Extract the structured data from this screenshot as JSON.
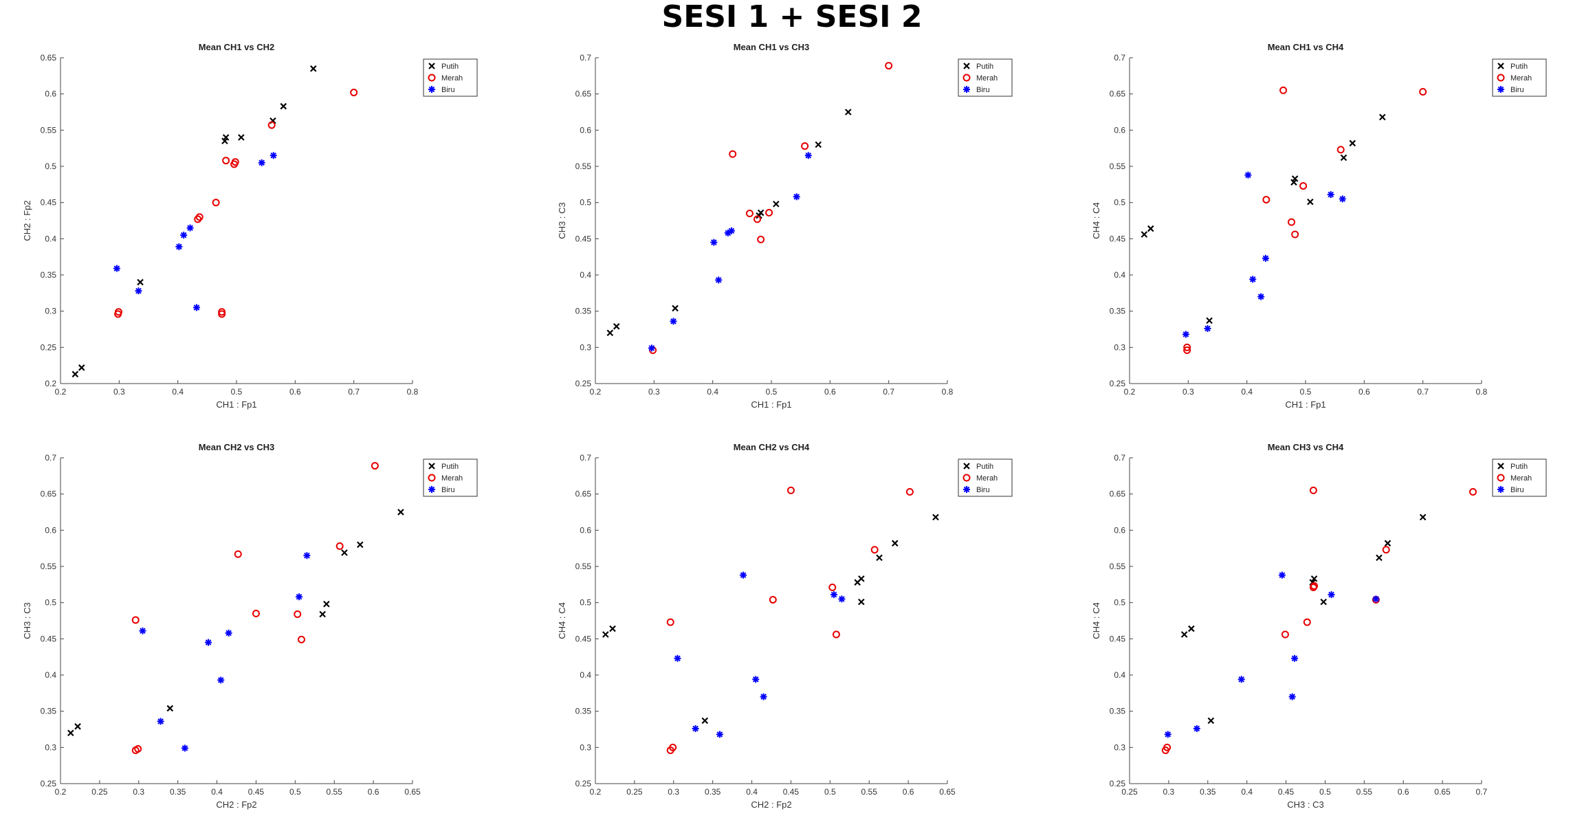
{
  "figure": {
    "title": "SESI 1 + SESI 2"
  },
  "legend_labels": [
    "Putih",
    "Merah",
    "Biru"
  ],
  "colors": {
    "Putih": "#000000",
    "Merah": "#e60000",
    "Biru": "#0000ff"
  },
  "chart_data": [
    {
      "type": "scatter",
      "title": "Mean CH1 vs CH2",
      "xlabel": "CH1 : Fp1",
      "ylabel": "CH2 : Fp2",
      "xlim": [
        0.2,
        0.8
      ],
      "ylim": [
        0.2,
        0.65
      ],
      "xticks": [
        "0.2",
        "0.3",
        "0.4",
        "0.5",
        "0.6",
        "0.7",
        "0.8"
      ],
      "yticks": [
        "0.2",
        "0.25",
        "0.3",
        "0.35",
        "0.4",
        "0.45",
        "0.5",
        "0.55",
        "0.6",
        "0.65"
      ],
      "legend_position": "top-right",
      "series": [
        {
          "name": "Putih",
          "marker": "x",
          "points": [
            [
              0.225,
              0.213
            ],
            [
              0.236,
              0.222
            ],
            [
              0.336,
              0.34
            ],
            [
              0.48,
              0.535
            ],
            [
              0.482,
              0.54
            ],
            [
              0.508,
              0.54
            ],
            [
              0.562,
              0.563
            ],
            [
              0.58,
              0.583
            ],
            [
              0.631,
              0.635
            ]
          ]
        },
        {
          "name": "Merah",
          "marker": "o",
          "points": [
            [
              0.298,
              0.296
            ],
            [
              0.299,
              0.299
            ],
            [
              0.434,
              0.427
            ],
            [
              0.437,
              0.43
            ],
            [
              0.465,
              0.45
            ],
            [
              0.475,
              0.296
            ],
            [
              0.475,
              0.299
            ],
            [
              0.482,
              0.508
            ],
            [
              0.496,
              0.503
            ],
            [
              0.498,
              0.506
            ],
            [
              0.56,
              0.557
            ],
            [
              0.7,
              0.602
            ]
          ]
        },
        {
          "name": "Biru",
          "marker": "*",
          "points": [
            [
              0.296,
              0.359
            ],
            [
              0.333,
              0.328
            ],
            [
              0.402,
              0.389
            ],
            [
              0.41,
              0.405
            ],
            [
              0.421,
              0.415
            ],
            [
              0.432,
              0.305
            ],
            [
              0.543,
              0.505
            ],
            [
              0.563,
              0.515
            ]
          ]
        }
      ]
    },
    {
      "type": "scatter",
      "title": "Mean CH1 vs CH3",
      "xlabel": "CH1 : Fp1",
      "ylabel": "CH3 : C3",
      "xlim": [
        0.2,
        0.8
      ],
      "ylim": [
        0.25,
        0.7
      ],
      "xticks": [
        "0.2",
        "0.3",
        "0.4",
        "0.5",
        "0.6",
        "0.7",
        "0.8"
      ],
      "yticks": [
        "0.25",
        "0.3",
        "0.35",
        "0.4",
        "0.45",
        "0.5",
        "0.55",
        "0.6",
        "0.65",
        "0.7"
      ],
      "legend_position": "top-right",
      "series": [
        {
          "name": "Putih",
          "marker": "x",
          "points": [
            [
              0.225,
              0.32
            ],
            [
              0.236,
              0.329
            ],
            [
              0.336,
              0.354
            ],
            [
              0.479,
              0.482
            ],
            [
              0.482,
              0.486
            ],
            [
              0.508,
              0.498
            ],
            [
              0.58,
              0.58
            ],
            [
              0.631,
              0.625
            ]
          ]
        },
        {
          "name": "Merah",
          "marker": "o",
          "points": [
            [
              0.298,
              0.296
            ],
            [
              0.434,
              0.567
            ],
            [
              0.463,
              0.485
            ],
            [
              0.476,
              0.477
            ],
            [
              0.482,
              0.449
            ],
            [
              0.496,
              0.486
            ],
            [
              0.557,
              0.578
            ],
            [
              0.7,
              0.689
            ]
          ]
        },
        {
          "name": "Biru",
          "marker": "*",
          "points": [
            [
              0.296,
              0.299
            ],
            [
              0.333,
              0.336
            ],
            [
              0.402,
              0.445
            ],
            [
              0.41,
              0.393
            ],
            [
              0.426,
              0.458
            ],
            [
              0.432,
              0.461
            ],
            [
              0.543,
              0.508
            ],
            [
              0.563,
              0.565
            ]
          ]
        }
      ]
    },
    {
      "type": "scatter",
      "title": "Mean CH1 vs CH4",
      "xlabel": "CH1 : Fp1",
      "ylabel": "CH4 : C4",
      "xlim": [
        0.2,
        0.8
      ],
      "ylim": [
        0.25,
        0.7
      ],
      "xticks": [
        "0.2",
        "0.3",
        "0.4",
        "0.5",
        "0.6",
        "0.7",
        "0.8"
      ],
      "yticks": [
        "0.25",
        "0.3",
        "0.35",
        "0.4",
        "0.45",
        "0.5",
        "0.55",
        "0.6",
        "0.65",
        "0.7"
      ],
      "legend_position": "top-right",
      "series": [
        {
          "name": "Putih",
          "marker": "x",
          "points": [
            [
              0.225,
              0.456
            ],
            [
              0.236,
              0.464
            ],
            [
              0.336,
              0.337
            ],
            [
              0.48,
              0.528
            ],
            [
              0.482,
              0.533
            ],
            [
              0.508,
              0.501
            ],
            [
              0.565,
              0.562
            ],
            [
              0.58,
              0.582
            ],
            [
              0.631,
              0.618
            ]
          ]
        },
        {
          "name": "Merah",
          "marker": "o",
          "points": [
            [
              0.298,
              0.296
            ],
            [
              0.298,
              0.3
            ],
            [
              0.433,
              0.504
            ],
            [
              0.462,
              0.655
            ],
            [
              0.476,
              0.473
            ],
            [
              0.482,
              0.456
            ],
            [
              0.496,
              0.523
            ],
            [
              0.56,
              0.573
            ],
            [
              0.7,
              0.653
            ]
          ]
        },
        {
          "name": "Biru",
          "marker": "*",
          "points": [
            [
              0.296,
              0.318
            ],
            [
              0.333,
              0.326
            ],
            [
              0.402,
              0.538
            ],
            [
              0.41,
              0.394
            ],
            [
              0.424,
              0.37
            ],
            [
              0.432,
              0.423
            ],
            [
              0.543,
              0.511
            ],
            [
              0.563,
              0.505
            ]
          ]
        }
      ]
    },
    {
      "type": "scatter",
      "title": "Mean CH2 vs CH3",
      "xlabel": "CH2 : Fp2",
      "ylabel": "CH3 : C3",
      "xlim": [
        0.2,
        0.65
      ],
      "ylim": [
        0.25,
        0.7
      ],
      "xticks": [
        "0.2",
        "0.25",
        "0.3",
        "0.35",
        "0.4",
        "0.45",
        "0.5",
        "0.55",
        "0.6",
        "0.65"
      ],
      "yticks": [
        "0.25",
        "0.3",
        "0.35",
        "0.4",
        "0.45",
        "0.5",
        "0.55",
        "0.6",
        "0.65",
        "0.7"
      ],
      "legend_position": "top-right",
      "series": [
        {
          "name": "Putih",
          "marker": "x",
          "points": [
            [
              0.213,
              0.32
            ],
            [
              0.222,
              0.329
            ],
            [
              0.34,
              0.354
            ],
            [
              0.535,
              0.484
            ],
            [
              0.54,
              0.498
            ],
            [
              0.563,
              0.569
            ],
            [
              0.583,
              0.58
            ],
            [
              0.635,
              0.625
            ]
          ]
        },
        {
          "name": "Merah",
          "marker": "o",
          "points": [
            [
              0.296,
              0.296
            ],
            [
              0.296,
              0.476
            ],
            [
              0.299,
              0.298
            ],
            [
              0.427,
              0.567
            ],
            [
              0.45,
              0.485
            ],
            [
              0.503,
              0.484
            ],
            [
              0.508,
              0.449
            ],
            [
              0.557,
              0.578
            ],
            [
              0.602,
              0.689
            ]
          ]
        },
        {
          "name": "Biru",
          "marker": "*",
          "points": [
            [
              0.305,
              0.461
            ],
            [
              0.328,
              0.336
            ],
            [
              0.359,
              0.299
            ],
            [
              0.389,
              0.445
            ],
            [
              0.405,
              0.393
            ],
            [
              0.415,
              0.458
            ],
            [
              0.505,
              0.508
            ],
            [
              0.515,
              0.565
            ]
          ]
        }
      ]
    },
    {
      "type": "scatter",
      "title": "Mean CH2 vs CH4",
      "xlabel": "CH2 : Fp2",
      "ylabel": "CH4 : C4",
      "xlim": [
        0.2,
        0.65
      ],
      "ylim": [
        0.25,
        0.7
      ],
      "xticks": [
        "0.2",
        "0.25",
        "0.3",
        "0.35",
        "0.4",
        "0.45",
        "0.5",
        "0.55",
        "0.6",
        "0.65"
      ],
      "yticks": [
        "0.25",
        "0.3",
        "0.35",
        "0.4",
        "0.45",
        "0.5",
        "0.55",
        "0.6",
        "0.65",
        "0.7"
      ],
      "legend_position": "top-right",
      "series": [
        {
          "name": "Putih",
          "marker": "x",
          "points": [
            [
              0.213,
              0.456
            ],
            [
              0.222,
              0.464
            ],
            [
              0.34,
              0.337
            ],
            [
              0.535,
              0.528
            ],
            [
              0.54,
              0.533
            ],
            [
              0.54,
              0.501
            ],
            [
              0.563,
              0.562
            ],
            [
              0.583,
              0.582
            ],
            [
              0.635,
              0.618
            ]
          ]
        },
        {
          "name": "Merah",
          "marker": "o",
          "points": [
            [
              0.296,
              0.296
            ],
            [
              0.296,
              0.473
            ],
            [
              0.299,
              0.3
            ],
            [
              0.427,
              0.504
            ],
            [
              0.45,
              0.655
            ],
            [
              0.503,
              0.521
            ],
            [
              0.508,
              0.456
            ],
            [
              0.557,
              0.573
            ],
            [
              0.602,
              0.653
            ]
          ]
        },
        {
          "name": "Biru",
          "marker": "*",
          "points": [
            [
              0.305,
              0.423
            ],
            [
              0.328,
              0.326
            ],
            [
              0.359,
              0.318
            ],
            [
              0.389,
              0.538
            ],
            [
              0.405,
              0.394
            ],
            [
              0.415,
              0.37
            ],
            [
              0.505,
              0.511
            ],
            [
              0.515,
              0.505
            ]
          ]
        }
      ]
    },
    {
      "type": "scatter",
      "title": "Mean CH3 vs CH4",
      "xlabel": "CH3 : C3",
      "ylabel": "CH4 : C4",
      "xlim": [
        0.25,
        0.7
      ],
      "ylim": [
        0.25,
        0.7
      ],
      "xticks": [
        "0.25",
        "0.3",
        "0.35",
        "0.4",
        "0.45",
        "0.5",
        "0.55",
        "0.6",
        "0.65",
        "0.7"
      ],
      "yticks": [
        "0.25",
        "0.3",
        "0.35",
        "0.4",
        "0.45",
        "0.5",
        "0.55",
        "0.6",
        "0.65",
        "0.7"
      ],
      "legend_position": "top-right",
      "series": [
        {
          "name": "Putih",
          "marker": "x",
          "points": [
            [
              0.32,
              0.456
            ],
            [
              0.329,
              0.464
            ],
            [
              0.354,
              0.337
            ],
            [
              0.484,
              0.528
            ],
            [
              0.486,
              0.533
            ],
            [
              0.498,
              0.501
            ],
            [
              0.569,
              0.562
            ],
            [
              0.58,
              0.582
            ],
            [
              0.625,
              0.618
            ]
          ]
        },
        {
          "name": "Merah",
          "marker": "o",
          "points": [
            [
              0.296,
              0.296
            ],
            [
              0.298,
              0.3
            ],
            [
              0.449,
              0.456
            ],
            [
              0.477,
              0.473
            ],
            [
              0.485,
              0.521
            ],
            [
              0.486,
              0.523
            ],
            [
              0.485,
              0.655
            ],
            [
              0.565,
              0.504
            ],
            [
              0.578,
              0.573
            ],
            [
              0.689,
              0.653
            ]
          ]
        },
        {
          "name": "Biru",
          "marker": "*",
          "points": [
            [
              0.299,
              0.318
            ],
            [
              0.336,
              0.326
            ],
            [
              0.393,
              0.394
            ],
            [
              0.445,
              0.538
            ],
            [
              0.458,
              0.37
            ],
            [
              0.461,
              0.423
            ],
            [
              0.508,
              0.511
            ],
            [
              0.565,
              0.505
            ]
          ]
        }
      ]
    }
  ]
}
